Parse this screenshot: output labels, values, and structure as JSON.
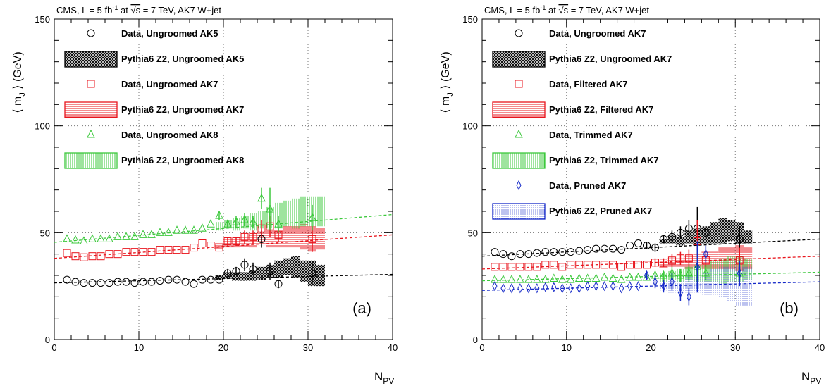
{
  "chart_data": [
    {
      "type": "scatter",
      "header": {
        "pre": "CMS, L = 5 fb",
        "sup": "-1",
        "mid": " at ",
        "sqrt": "√s",
        "post": " = 7 TeV, AK7 W+jet"
      },
      "panel_label": "(a)",
      "xlabel": "N",
      "xlabel_sub": "PV",
      "ylabel": "⟨ m",
      "ylabel_sub": "J",
      "ylabel_post": " ⟩ (GeV)",
      "xlim": [
        0,
        40
      ],
      "ylim": [
        0,
        150
      ],
      "xticks": [
        0,
        10,
        20,
        30,
        40
      ],
      "yticks": [
        0,
        50,
        100,
        150
      ],
      "grid": true,
      "legend_position": "top-left",
      "series": [
        {
          "name": "Data, Ungroomed AK5",
          "kind": "data",
          "marker": "circle",
          "color": "#000000",
          "x": [
            1.5,
            2.5,
            3.5,
            4.5,
            5.5,
            6.5,
            7.5,
            8.5,
            9.5,
            10.5,
            11.5,
            12.5,
            13.5,
            14.5,
            15.5,
            16.5,
            17.5,
            18.5,
            19.5,
            20.5,
            21.5,
            22.5,
            23.5,
            24.5,
            25.5,
            26.5,
            30.5
          ],
          "y": [
            28,
            27,
            26.5,
            26.5,
            26.5,
            26.5,
            27,
            27,
            26.5,
            27,
            27,
            27.5,
            28,
            28,
            27,
            26,
            28,
            28,
            28,
            31,
            32,
            35,
            33,
            47,
            32,
            26,
            31
          ],
          "err": [
            0.5,
            0.5,
            0.5,
            0.5,
            0.5,
            0.5,
            0.5,
            0.5,
            0.5,
            0.5,
            0.5,
            0.5,
            0.5,
            0.5,
            0.5,
            0.5,
            0.5,
            0.5,
            1,
            2,
            2,
            3,
            3,
            4,
            4,
            2,
            5
          ],
          "fit": [
            0,
            26.5,
            40,
            30.5
          ]
        },
        {
          "name": "Pythia6 Z2, Ungroomed AK5",
          "kind": "mc",
          "color": "#000000",
          "fill": "#555555",
          "x": [
            19.5,
            20.5,
            21.5,
            22.5,
            23.5,
            24.5,
            25.5,
            26.5,
            27.5,
            28.5,
            29.5,
            30.5,
            31.5
          ],
          "y": [
            29,
            30,
            29.5,
            29.5,
            30,
            31,
            32,
            33,
            34,
            34,
            32,
            31,
            30
          ],
          "err": [
            1,
            1.5,
            2,
            2,
            2.5,
            3,
            3,
            4,
            4,
            5,
            5,
            6,
            5
          ]
        },
        {
          "name": "Data, Ungroomed AK7",
          "kind": "data",
          "marker": "square",
          "color": "#e8141c",
          "x": [
            1.5,
            2.5,
            3.5,
            4.5,
            5.5,
            6.5,
            7.5,
            8.5,
            9.5,
            10.5,
            11.5,
            12.5,
            13.5,
            14.5,
            15.5,
            16.5,
            17.5,
            18.5,
            19.5,
            20.5,
            21.5,
            22.5,
            23.5,
            24.5,
            25.5,
            26.5,
            30.5
          ],
          "y": [
            40.5,
            39,
            38.5,
            39,
            39,
            40,
            40,
            41,
            41,
            41,
            41,
            42,
            42,
            42,
            42,
            43,
            45,
            44,
            43,
            46,
            46,
            48,
            48,
            52,
            53,
            49,
            47
          ],
          "err": [
            0.5,
            0.5,
            0.5,
            0.5,
            0.5,
            0.5,
            0.5,
            0.5,
            0.5,
            0.5,
            0.5,
            0.5,
            0.5,
            0.5,
            0.5,
            0.5,
            1,
            1,
            1,
            2,
            2,
            3,
            3,
            4,
            5,
            3,
            6
          ],
          "fit": [
            0,
            38,
            40,
            49
          ]
        },
        {
          "name": "Pythia6 Z2, Ungroomed AK7",
          "kind": "mc",
          "color": "#e8141c",
          "fill": "#e8141c",
          "x": [
            19.5,
            20.5,
            21.5,
            22.5,
            23.5,
            24.5,
            25.5,
            26.5,
            27.5,
            28.5,
            29.5,
            30.5,
            31.5
          ],
          "y": [
            44,
            45,
            45,
            46,
            46,
            47,
            47,
            47,
            48,
            48,
            48,
            47,
            47
          ],
          "err": [
            1.5,
            2,
            2,
            2.5,
            3,
            3,
            4,
            4,
            5,
            5,
            6,
            6,
            5
          ]
        },
        {
          "name": "Data, Ungroomed AK8",
          "kind": "data",
          "marker": "triangle",
          "color": "#3cc83c",
          "x": [
            1.5,
            2.5,
            3.5,
            4.5,
            5.5,
            6.5,
            7.5,
            8.5,
            9.5,
            10.5,
            11.5,
            12.5,
            13.5,
            14.5,
            15.5,
            16.5,
            17.5,
            18.5,
            19.5,
            20.5,
            21.5,
            22.5,
            23.5,
            24.5,
            25.5,
            26.5,
            30.5
          ],
          "y": [
            47,
            46.5,
            46,
            47,
            47,
            47,
            48,
            48,
            48,
            49,
            49,
            50,
            50,
            51,
            51,
            51,
            52,
            54,
            58,
            54,
            55,
            56,
            55,
            66,
            61,
            54,
            57
          ],
          "err": [
            0.5,
            0.5,
            0.5,
            0.5,
            0.5,
            0.5,
            0.5,
            0.5,
            0.5,
            0.5,
            0.5,
            0.5,
            0.5,
            0.5,
            1,
            1,
            1,
            1,
            2,
            2,
            3,
            3,
            3,
            5,
            10,
            4,
            6
          ],
          "fit": [
            0,
            45.5,
            40,
            58.5
          ]
        },
        {
          "name": "Pythia6 Z2, Ungroomed AK8",
          "kind": "mc",
          "color": "#3cc83c",
          "fill": "#3cc83c",
          "x": [
            19.5,
            20.5,
            21.5,
            22.5,
            23.5,
            24.5,
            25.5,
            26.5,
            27.5,
            28.5,
            29.5,
            30.5,
            31.5
          ],
          "y": [
            53,
            54,
            54,
            55,
            55,
            56,
            57,
            58,
            59,
            59,
            60,
            60,
            60
          ],
          "err": [
            2,
            2,
            3,
            3,
            4,
            4,
            5,
            6,
            6,
            7,
            7,
            7,
            7
          ]
        }
      ]
    },
    {
      "type": "scatter",
      "header": {
        "pre": "CMS, L = 5 fb",
        "sup": "-1",
        "mid": " at ",
        "sqrt": "√s",
        "post": " = 7 TeV, AK7 W+jet"
      },
      "panel_label": "(b)",
      "xlabel": "N",
      "xlabel_sub": "PV",
      "ylabel": "⟨ m",
      "ylabel_sub": "J",
      "ylabel_post": " ⟩ (GeV)",
      "xlim": [
        0,
        40
      ],
      "ylim": [
        0,
        150
      ],
      "xticks": [
        0,
        10,
        20,
        30,
        40
      ],
      "yticks": [
        0,
        50,
        100,
        150
      ],
      "grid": true,
      "legend_position": "top-left",
      "series": [
        {
          "name": "Data, Ungroomed AK7",
          "kind": "data",
          "marker": "circle",
          "color": "#000000",
          "x": [
            1.5,
            2.5,
            3.5,
            4.5,
            5.5,
            6.5,
            7.5,
            8.5,
            9.5,
            10.5,
            11.5,
            12.5,
            13.5,
            14.5,
            15.5,
            16.5,
            17.5,
            18.5,
            19.5,
            20.5,
            21.5,
            22.5,
            23.5,
            24.5,
            25.5,
            26.5,
            30.5
          ],
          "y": [
            41,
            40,
            39,
            40,
            40,
            40.5,
            41,
            41,
            41,
            41,
            41.5,
            42,
            42.5,
            42.5,
            42.5,
            42,
            44,
            45,
            44,
            43,
            47,
            48,
            50,
            52,
            52,
            50,
            47
          ],
          "err": [
            0.5,
            0.5,
            0.5,
            0.5,
            0.5,
            0.5,
            0.5,
            0.5,
            0.5,
            0.5,
            0.5,
            0.5,
            0.5,
            0.5,
            0.5,
            0.5,
            1,
            1,
            1.5,
            2,
            2,
            3,
            3,
            4,
            10,
            3,
            6
          ],
          "fit": [
            0,
            39,
            40,
            47
          ]
        },
        {
          "name": "Pythia6 Z2, Ungroomed AK7",
          "kind": "mc",
          "color": "#000000",
          "fill": "#555555",
          "x": [
            21.5,
            22.5,
            23.5,
            24.5,
            25.5,
            26.5,
            27.5,
            28.5,
            29.5,
            30.5,
            31.5
          ],
          "y": [
            46,
            47,
            46,
            48,
            48,
            49,
            50,
            51,
            51,
            50,
            48
          ],
          "err": [
            1,
            2,
            2,
            3,
            4,
            4,
            5,
            6,
            5,
            5,
            3
          ]
        },
        {
          "name": "Data, Filtered AK7",
          "kind": "data",
          "marker": "square",
          "color": "#e8141c",
          "x": [
            1.5,
            2.5,
            3.5,
            4.5,
            5.5,
            6.5,
            7.5,
            8.5,
            9.5,
            10.5,
            11.5,
            12.5,
            13.5,
            14.5,
            15.5,
            16.5,
            17.5,
            18.5,
            19.5,
            20.5,
            21.5,
            22.5,
            23.5,
            24.5,
            25.5,
            26.5,
            30.5
          ],
          "y": [
            34,
            34,
            34,
            34,
            34,
            34,
            35,
            35,
            34,
            35,
            35,
            35,
            35,
            35,
            35,
            34,
            35,
            35,
            35,
            36,
            36,
            37,
            38,
            38,
            46,
            37,
            37
          ],
          "err": [
            0.5,
            0.5,
            0.5,
            0.5,
            0.5,
            0.5,
            0.5,
            0.5,
            0.5,
            0.5,
            0.5,
            0.5,
            0.5,
            0.5,
            0.5,
            0.5,
            1,
            1,
            1,
            2,
            2,
            3,
            3,
            4,
            10,
            3,
            6
          ],
          "fit": [
            0,
            33,
            40,
            39
          ]
        },
        {
          "name": "Pythia6 Z2, Filtered AK7",
          "kind": "mc",
          "color": "#e8141c",
          "fill": "#e8141c",
          "x": [
            21.5,
            22.5,
            23.5,
            24.5,
            25.5,
            26.5,
            27.5,
            28.5,
            29.5,
            30.5,
            31.5
          ],
          "y": [
            35,
            36,
            36,
            36,
            37,
            37,
            37,
            38,
            38,
            38,
            38
          ],
          "err": [
            1.5,
            2,
            2,
            3,
            3,
            4,
            4,
            5,
            5,
            6,
            5
          ]
        },
        {
          "name": "Data, Trimmed AK7",
          "kind": "data",
          "marker": "triangle",
          "color": "#3cc83c",
          "x": [
            1.5,
            2.5,
            3.5,
            4.5,
            5.5,
            6.5,
            7.5,
            8.5,
            9.5,
            10.5,
            11.5,
            12.5,
            13.5,
            14.5,
            15.5,
            16.5,
            17.5,
            18.5,
            19.5,
            20.5,
            21.5,
            22.5,
            23.5,
            24.5,
            25.5,
            26.5,
            30.5
          ],
          "y": [
            28,
            28,
            28,
            28,
            28,
            28,
            28,
            28.5,
            28,
            28,
            28.5,
            28.5,
            28.5,
            29,
            28.5,
            28,
            29,
            29,
            29,
            30,
            30,
            31,
            30,
            31,
            34,
            31,
            31
          ],
          "err": [
            0.5,
            0.5,
            0.5,
            0.5,
            0.5,
            0.5,
            0.5,
            0.5,
            0.5,
            0.5,
            0.5,
            0.5,
            0.5,
            0.5,
            0.5,
            0.5,
            1,
            1,
            1,
            2,
            2,
            3,
            3,
            4,
            8,
            3,
            5
          ],
          "fit": [
            0,
            27.5,
            40,
            31.5
          ]
        },
        {
          "name": "Pythia6 Z2, Trimmed AK7",
          "kind": "mc",
          "color": "#3cc83c",
          "fill": "#3cc83c",
          "x": [
            21.5,
            22.5,
            23.5,
            24.5,
            25.5,
            26.5,
            27.5,
            28.5,
            29.5,
            30.5,
            31.5
          ],
          "y": [
            29,
            30,
            30,
            31,
            31,
            31,
            32,
            32,
            33,
            33,
            33
          ],
          "err": [
            2,
            2,
            3,
            3,
            4,
            4,
            5,
            6,
            6,
            6,
            5
          ]
        },
        {
          "name": "Data, Pruned AK7",
          "kind": "data",
          "marker": "diamond",
          "color": "#1428c8",
          "x": [
            1.5,
            2.5,
            3.5,
            4.5,
            5.5,
            6.5,
            7.5,
            8.5,
            9.5,
            10.5,
            11.5,
            12.5,
            13.5,
            14.5,
            15.5,
            16.5,
            17.5,
            18.5,
            19.5,
            20.5,
            21.5,
            22.5,
            23.5,
            24.5,
            25.5,
            26.5,
            30.5
          ],
          "y": [
            25,
            24,
            24,
            24,
            24,
            24,
            24.5,
            24.5,
            24,
            24,
            24,
            25,
            25,
            25,
            25,
            24,
            25,
            25,
            30,
            27,
            25,
            27,
            22,
            20,
            34,
            40,
            31
          ],
          "err": [
            0.5,
            0.5,
            0.5,
            0.5,
            0.5,
            0.5,
            0.5,
            0.5,
            0.5,
            0.5,
            0.5,
            0.5,
            0.5,
            0.5,
            0.5,
            0.5,
            1,
            1,
            2,
            3,
            3,
            4,
            4,
            4,
            12,
            4,
            6
          ],
          "fit": [
            0,
            23,
            40,
            27
          ]
        },
        {
          "name": "Pythia6 Z2, Pruned AK7",
          "kind": "mc",
          "color": "#1428c8",
          "fill": "#1428c8",
          "x": [
            21.5,
            22.5,
            23.5,
            24.5,
            25.5,
            26.5,
            27.5,
            28.5,
            29.5,
            30.5,
            31.5
          ],
          "y": [
            25,
            25,
            25,
            26,
            26,
            26,
            27,
            27,
            26,
            25,
            25
          ],
          "err": [
            2,
            3,
            3,
            4,
            4,
            5,
            6,
            7,
            8,
            9,
            9
          ]
        }
      ]
    }
  ]
}
